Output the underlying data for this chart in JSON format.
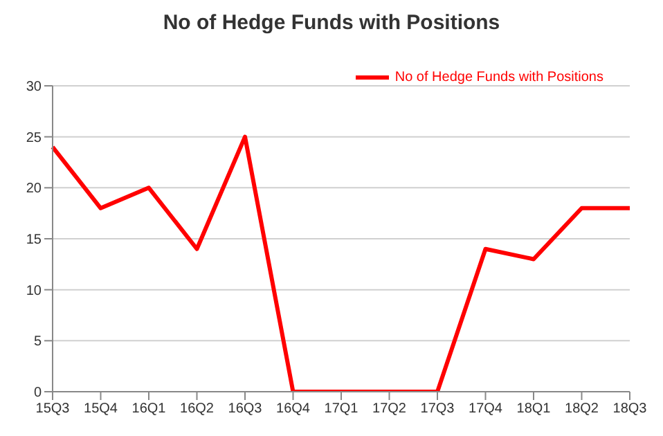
{
  "chart_data": {
    "type": "line",
    "title": "No of Hedge Funds with Positions",
    "categories": [
      "15Q3",
      "15Q4",
      "16Q1",
      "16Q2",
      "16Q3",
      "16Q4",
      "17Q1",
      "17Q2",
      "17Q3",
      "17Q4",
      "18Q1",
      "18Q2",
      "18Q3"
    ],
    "series": [
      {
        "name": "No of Hedge Funds with Positions",
        "color": "#ff0000",
        "values": [
          24,
          18,
          20,
          14,
          25,
          0,
          0,
          0,
          0,
          14,
          13,
          18,
          18
        ]
      }
    ],
    "ylim": [
      0,
      30
    ],
    "yticks": [
      0,
      5,
      10,
      15,
      20,
      25,
      30
    ],
    "grid": "y",
    "legend": "top right",
    "marker": "none",
    "line_style": "solid"
  }
}
